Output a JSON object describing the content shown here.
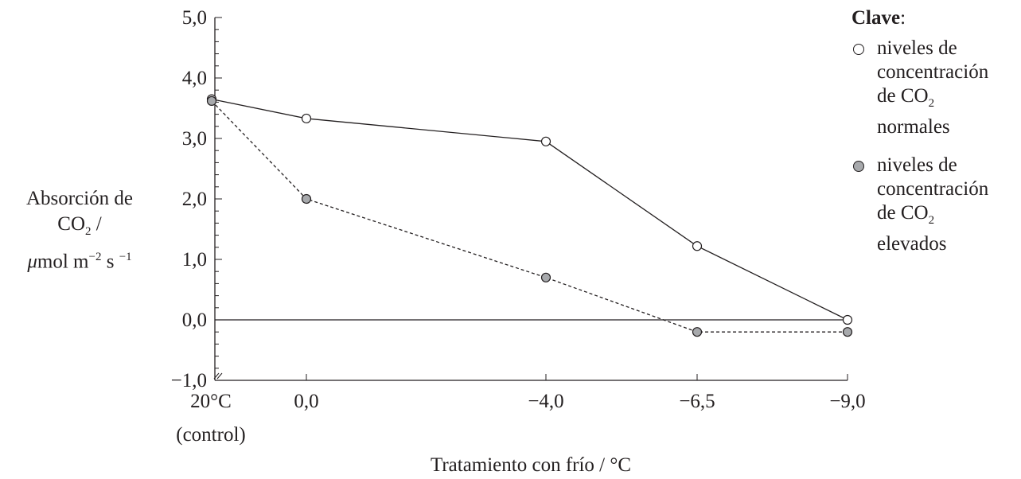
{
  "chart_data": {
    "type": "line",
    "xlabel": "Tratamiento con frío / °C",
    "ylabel_parts": [
      "Absorción de",
      "CO",
      "2",
      " /",
      "μ",
      "mol m",
      "−2",
      " s ",
      "−1"
    ],
    "categories": [
      "20°C",
      "0,0",
      "−4,0",
      "−6,5",
      "−9,0"
    ],
    "x_tick_sub": "(control)",
    "x": [
      20,
      0,
      -4,
      -6.5,
      -9
    ],
    "ylim": [
      -1,
      5
    ],
    "y_ticks": [
      "−1,0",
      "0,0",
      "1,0",
      "2,0",
      "3,0",
      "4,0",
      "5,0"
    ],
    "series": [
      {
        "name": "niveles de concentración de CO2 normales",
        "values": [
          3.65,
          3.33,
          2.95,
          1.22,
          0.0
        ],
        "marker": "open-circle",
        "line": "solid",
        "color": "#ffffff"
      },
      {
        "name": "niveles de concentración de CO2 elevados",
        "values": [
          3.62,
          2.0,
          0.7,
          -0.2,
          -0.2
        ],
        "marker": "filled-circle",
        "line": "dashed",
        "color": "#a7a9ac"
      }
    ],
    "grid": false
  },
  "legend": {
    "title": "Clave",
    "title_suffix": ":",
    "items": [
      {
        "l1": "niveles de",
        "l2": "concentración",
        "l3a": "de CO",
        "l3sub": "2",
        "l4": "normales",
        "marker_color": "#ffffff"
      },
      {
        "l1": "niveles de",
        "l2": "concentración",
        "l3a": "de CO",
        "l3sub": "2",
        "l4": "elevados",
        "marker_color": "#a7a9ac"
      }
    ]
  }
}
